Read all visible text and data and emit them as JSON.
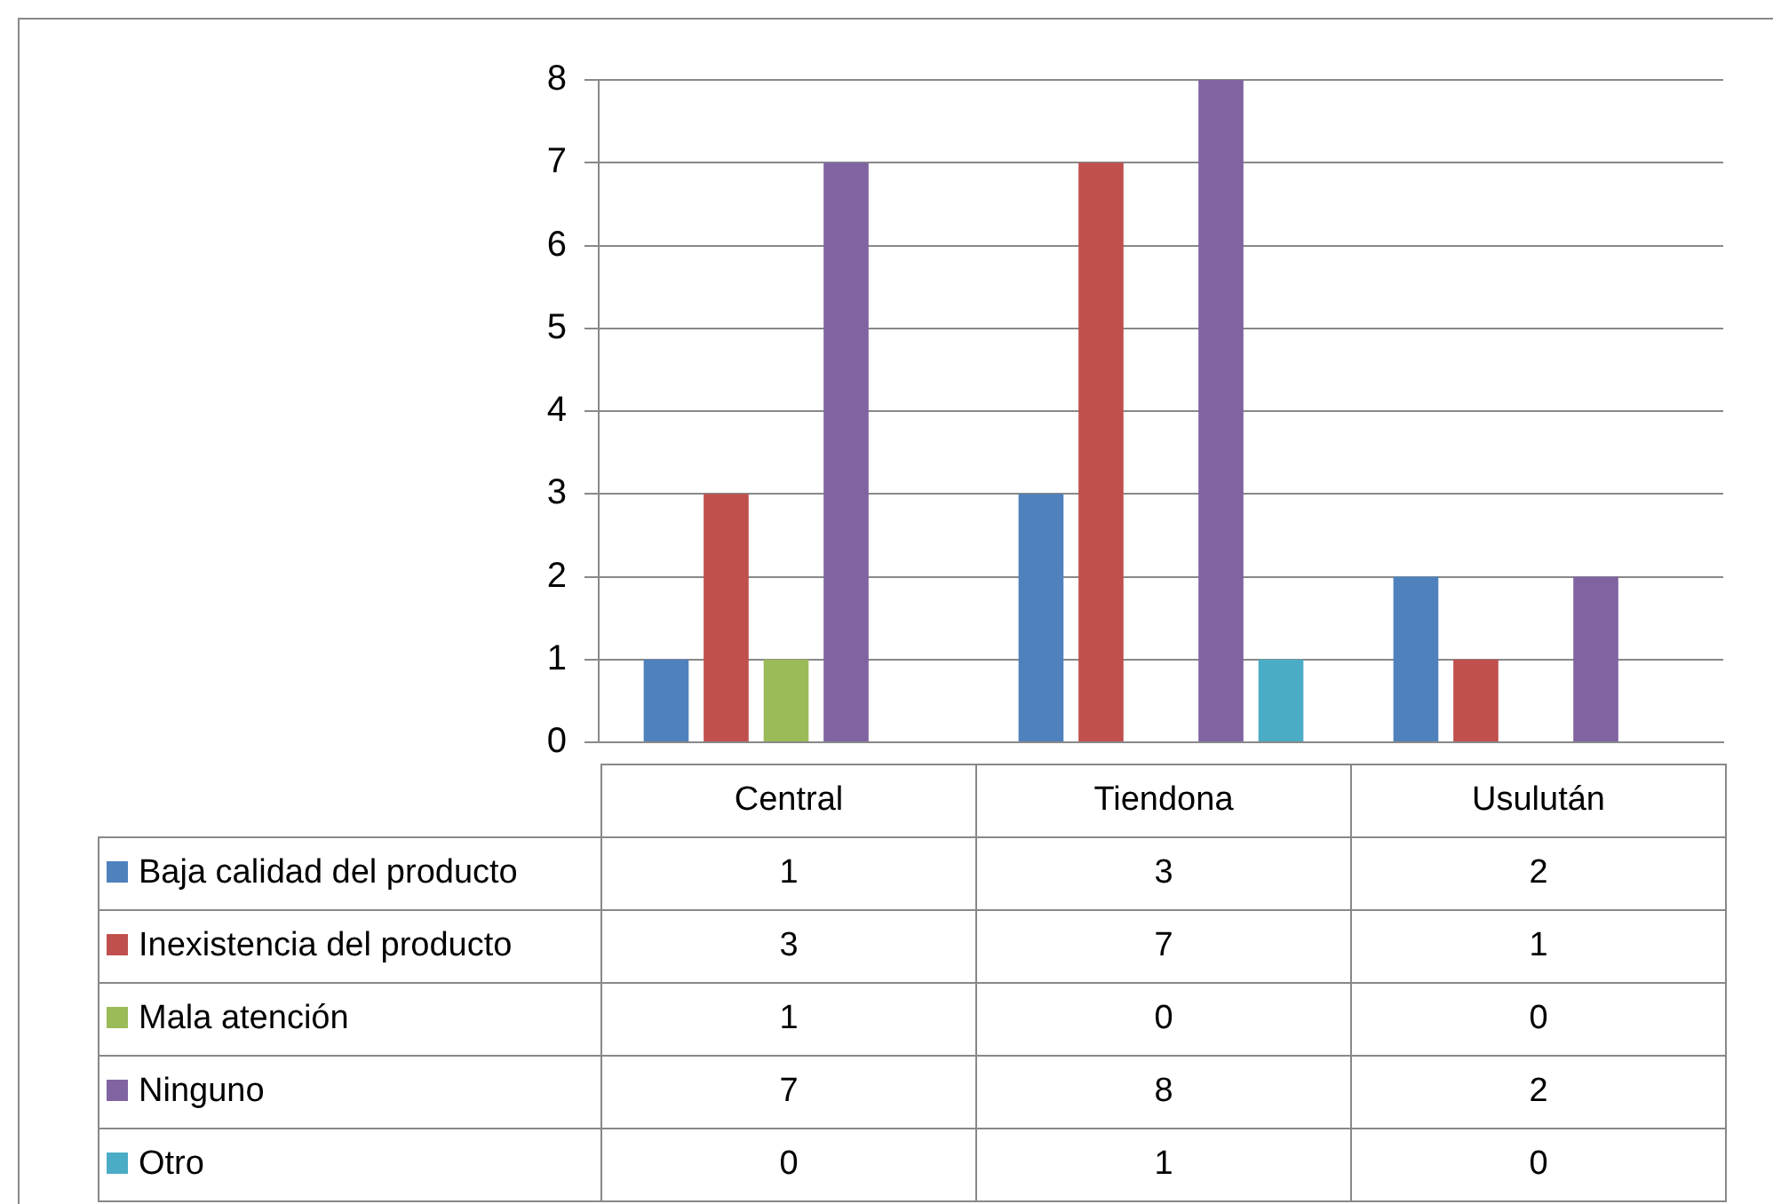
{
  "chart_data": {
    "type": "bar",
    "categories": [
      "Central",
      "Tiendona",
      "Usulután"
    ],
    "series": [
      {
        "name": "Baja calidad del producto",
        "color": "#4f81bd",
        "values": [
          1,
          3,
          2
        ]
      },
      {
        "name": "Inexistencia del producto",
        "color": "#c0504d",
        "values": [
          3,
          7,
          1
        ]
      },
      {
        "name": "Mala atención",
        "color": "#9bbb59",
        "values": [
          1,
          0,
          0
        ]
      },
      {
        "name": "Ninguno",
        "color": "#8064a2",
        "values": [
          7,
          8,
          2
        ]
      },
      {
        "name": "Otro",
        "color": "#4bacc6",
        "values": [
          0,
          1,
          0
        ]
      }
    ],
    "ylim": [
      0,
      8
    ],
    "yticks": [
      0,
      1,
      2,
      3,
      4,
      5,
      6,
      7,
      8
    ],
    "grid": "y",
    "legend": "bottom",
    "data_labels": true
  }
}
